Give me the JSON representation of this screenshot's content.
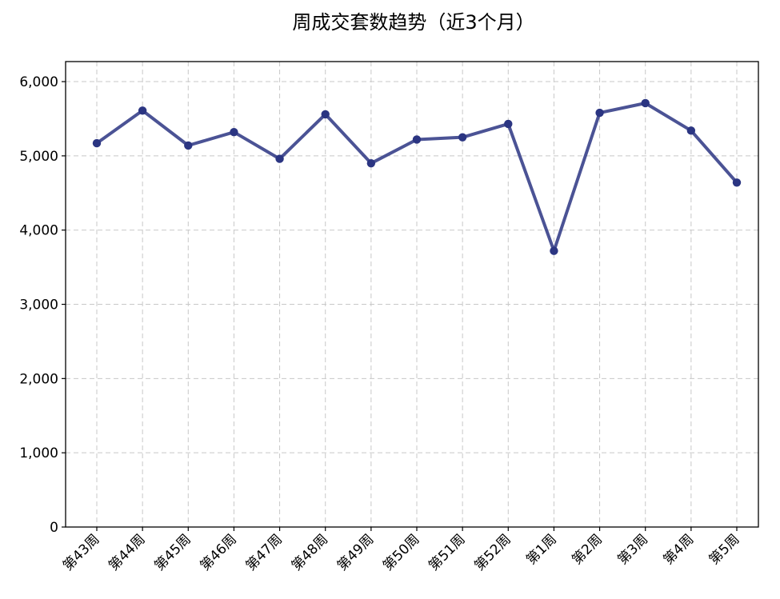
{
  "chart_data": {
    "type": "line",
    "title": "周成交套数趋势（近3个月）",
    "xlabel": "",
    "ylabel": "",
    "categories": [
      "第43周",
      "第44周",
      "第45周",
      "第46周",
      "第47周",
      "第48周",
      "第49周",
      "第50周",
      "第51周",
      "第52周",
      "第1周",
      "第2周",
      "第3周",
      "第4周",
      "第5周"
    ],
    "series": [
      {
        "values": [
          5170,
          5610,
          5140,
          5320,
          4960,
          5560,
          4900,
          5220,
          5250,
          5430,
          3720,
          5580,
          5710,
          5340,
          4640
        ],
        "color": "#2b3582"
      }
    ],
    "ylim": [
      0,
      6270
    ],
    "yticks": [
      {
        "value": 0,
        "label": "0"
      },
      {
        "value": 1000,
        "label": "1,000"
      },
      {
        "value": 2000,
        "label": "2,000"
      },
      {
        "value": 3000,
        "label": "3,000"
      },
      {
        "value": 4000,
        "label": "4,000"
      },
      {
        "value": 5000,
        "label": "5,000"
      },
      {
        "value": 6000,
        "label": "6,000"
      }
    ],
    "grid": true,
    "markers": true
  }
}
